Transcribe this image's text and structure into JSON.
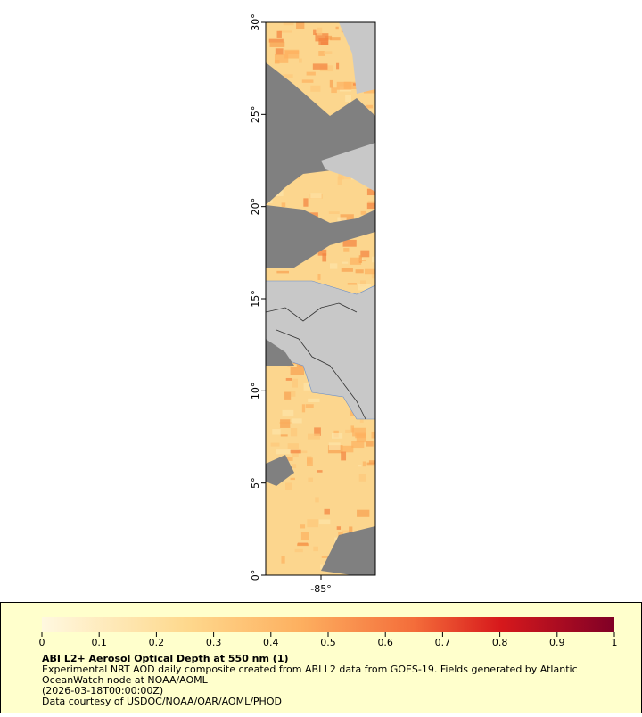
{
  "map": {
    "lat_ticks": [
      "0°",
      "5°",
      "10°",
      "15°",
      "20°",
      "25°",
      "30°"
    ],
    "lon_ticks": [
      "-85°"
    ]
  },
  "colorbar": {
    "range": [
      0,
      1
    ],
    "ticks": [
      0,
      0.1,
      0.2,
      0.3,
      0.4,
      0.5,
      0.6,
      0.7,
      0.8,
      0.9,
      1
    ]
  },
  "legend": {
    "title": "ABI L2+ Aerosol Optical Depth at 550 nm (1)",
    "lines": [
      "Experimental NRT AOD daily composite created from ABI L2 data from GOES-19. Fields generated by Atlantic",
      "OceanWatch node at NOAA/AOML",
      "(2026-03-18T00:00:00Z)",
      "Data courtesy of USDOC/NOAA/OAR/AOML/PHOD"
    ]
  }
}
